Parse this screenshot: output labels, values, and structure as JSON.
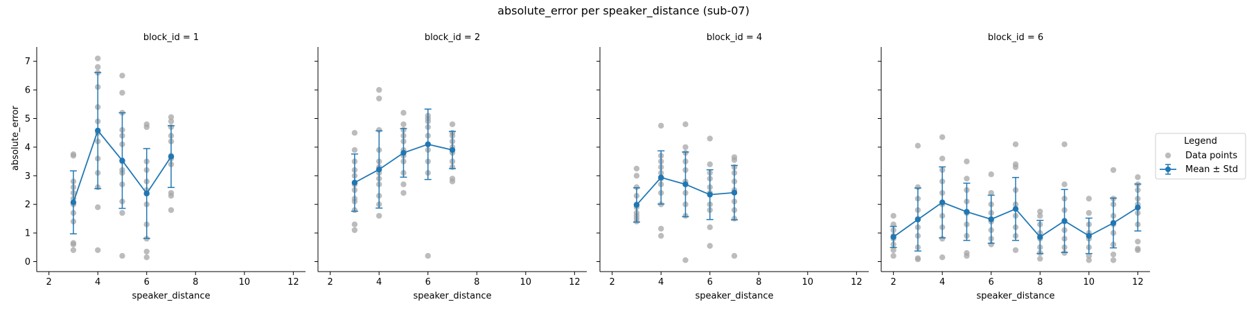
{
  "chart_data": {
    "type": "scatter",
    "title": "absolute_error per speaker_distance (sub-07)",
    "xlabel": "speaker_distance",
    "ylabel": "absolute_error",
    "xlim": [
      1.5,
      12.5
    ],
    "ylim": [
      -0.35,
      7.5
    ],
    "xticks": [
      "2",
      "4",
      "6",
      "8",
      "10",
      "12"
    ],
    "yticks": [
      "0",
      "1",
      "2",
      "3",
      "4",
      "5",
      "6",
      "7"
    ],
    "grid": false,
    "legend": {
      "title": "Legend",
      "placement": "right",
      "entries": [
        "Data points",
        "Mean ± Std"
      ]
    },
    "colors": {
      "points": "#a6a6a6",
      "mean": "#1f77b4"
    },
    "panels": [
      {
        "title": "block_id = 1",
        "points": [
          [
            3,
            0.4
          ],
          [
            3,
            0.6
          ],
          [
            3,
            0.65
          ],
          [
            3,
            1.4
          ],
          [
            3,
            1.7
          ],
          [
            3,
            2.0
          ],
          [
            3,
            2.2
          ],
          [
            3,
            2.4
          ],
          [
            3,
            2.6
          ],
          [
            3,
            2.8
          ],
          [
            3,
            3.7
          ],
          [
            3,
            3.75
          ],
          [
            4,
            0.4
          ],
          [
            4,
            1.9
          ],
          [
            4,
            2.6
          ],
          [
            4,
            3.1
          ],
          [
            4,
            3.6
          ],
          [
            4,
            4.2
          ],
          [
            4,
            4.5
          ],
          [
            4,
            4.9
          ],
          [
            4,
            5.4
          ],
          [
            4,
            6.1
          ],
          [
            4,
            6.6
          ],
          [
            4,
            6.8
          ],
          [
            4,
            7.1
          ],
          [
            5,
            0.2
          ],
          [
            5,
            1.7
          ],
          [
            5,
            2.1
          ],
          [
            5,
            2.7
          ],
          [
            5,
            3.1
          ],
          [
            5,
            3.2
          ],
          [
            5,
            3.5
          ],
          [
            5,
            4.1
          ],
          [
            5,
            4.4
          ],
          [
            5,
            4.6
          ],
          [
            5,
            5.2
          ],
          [
            5,
            5.9
          ],
          [
            5,
            6.5
          ],
          [
            6,
            0.15
          ],
          [
            6,
            0.35
          ],
          [
            6,
            0.8
          ],
          [
            6,
            1.3
          ],
          [
            6,
            2.0
          ],
          [
            6,
            2.5
          ],
          [
            6,
            2.8
          ],
          [
            6,
            3.2
          ],
          [
            6,
            3.5
          ],
          [
            6,
            4.7
          ],
          [
            6,
            4.8
          ],
          [
            7,
            1.8
          ],
          [
            7,
            2.3
          ],
          [
            7,
            2.4
          ],
          [
            7,
            3.4
          ],
          [
            7,
            3.6
          ],
          [
            7,
            3.7
          ],
          [
            7,
            4.2
          ],
          [
            7,
            4.4
          ],
          [
            7,
            4.7
          ],
          [
            7,
            4.9
          ],
          [
            7,
            5.05
          ]
        ],
        "mean": [
          [
            3,
            2.07
          ],
          [
            4,
            4.58
          ],
          [
            5,
            3.53
          ],
          [
            6,
            2.38
          ],
          [
            7,
            3.67
          ]
        ],
        "std": [
          1.1,
          2.03,
          1.67,
          1.57,
          1.08
        ]
      },
      {
        "title": "block_id = 2",
        "points": [
          [
            3,
            1.1
          ],
          [
            3,
            1.3
          ],
          [
            3,
            1.8
          ],
          [
            3,
            2.1
          ],
          [
            3,
            2.2
          ],
          [
            3,
            2.5
          ],
          [
            3,
            2.7
          ],
          [
            3,
            3.0
          ],
          [
            3,
            3.2
          ],
          [
            3,
            3.5
          ],
          [
            3,
            3.9
          ],
          [
            3,
            4.5
          ],
          [
            4,
            1.6
          ],
          [
            4,
            2.0
          ],
          [
            4,
            2.3
          ],
          [
            4,
            2.7
          ],
          [
            4,
            2.9
          ],
          [
            4,
            3.1
          ],
          [
            4,
            3.3
          ],
          [
            4,
            3.5
          ],
          [
            4,
            3.9
          ],
          [
            4,
            4.6
          ],
          [
            4,
            5.7
          ],
          [
            4,
            6.0
          ],
          [
            5,
            2.4
          ],
          [
            5,
            2.7
          ],
          [
            5,
            3.1
          ],
          [
            5,
            3.5
          ],
          [
            5,
            3.7
          ],
          [
            5,
            3.9
          ],
          [
            5,
            4.2
          ],
          [
            5,
            4.4
          ],
          [
            5,
            4.6
          ],
          [
            5,
            4.8
          ],
          [
            5,
            5.2
          ],
          [
            6,
            0.2
          ],
          [
            6,
            3.1
          ],
          [
            6,
            3.5
          ],
          [
            6,
            3.9
          ],
          [
            6,
            4.1
          ],
          [
            6,
            4.4
          ],
          [
            6,
            4.7
          ],
          [
            6,
            4.9
          ],
          [
            6,
            5.0
          ],
          [
            6,
            5.1
          ],
          [
            7,
            2.8
          ],
          [
            7,
            2.9
          ],
          [
            7,
            3.3
          ],
          [
            7,
            3.5
          ],
          [
            7,
            3.8
          ],
          [
            7,
            4.0
          ],
          [
            7,
            4.2
          ],
          [
            7,
            4.4
          ],
          [
            7,
            4.5
          ],
          [
            7,
            4.8
          ]
        ],
        "mean": [
          [
            3,
            2.76
          ],
          [
            4,
            3.22
          ],
          [
            5,
            3.8
          ],
          [
            6,
            4.1
          ],
          [
            7,
            3.9
          ]
        ],
        "std": [
          1.0,
          1.35,
          0.85,
          1.23,
          0.65
        ]
      },
      {
        "title": "block_id = 4",
        "points": [
          [
            3,
            1.4
          ],
          [
            3,
            1.5
          ],
          [
            3,
            1.6
          ],
          [
            3,
            1.7
          ],
          [
            3,
            1.9
          ],
          [
            3,
            2.0
          ],
          [
            3,
            2.3
          ],
          [
            3,
            2.6
          ],
          [
            3,
            3.0
          ],
          [
            3,
            3.25
          ],
          [
            4,
            0.9
          ],
          [
            4,
            1.15
          ],
          [
            4,
            2.0
          ],
          [
            4,
            2.4
          ],
          [
            4,
            2.7
          ],
          [
            4,
            2.9
          ],
          [
            4,
            3.1
          ],
          [
            4,
            3.3
          ],
          [
            4,
            3.5
          ],
          [
            4,
            3.7
          ],
          [
            4,
            4.75
          ],
          [
            5,
            0.05
          ],
          [
            5,
            1.6
          ],
          [
            5,
            2.0
          ],
          [
            5,
            2.4
          ],
          [
            5,
            2.8
          ],
          [
            5,
            3.2
          ],
          [
            5,
            3.5
          ],
          [
            5,
            3.8
          ],
          [
            5,
            4.0
          ],
          [
            5,
            4.8
          ],
          [
            6,
            0.55
          ],
          [
            6,
            1.2
          ],
          [
            6,
            1.8
          ],
          [
            6,
            2.0
          ],
          [
            6,
            2.4
          ],
          [
            6,
            2.6
          ],
          [
            6,
            2.9
          ],
          [
            6,
            3.1
          ],
          [
            6,
            3.4
          ],
          [
            6,
            4.3
          ],
          [
            7,
            0.2
          ],
          [
            7,
            1.5
          ],
          [
            7,
            1.8
          ],
          [
            7,
            2.1
          ],
          [
            7,
            2.5
          ],
          [
            7,
            2.8
          ],
          [
            7,
            3.1
          ],
          [
            7,
            3.3
          ],
          [
            7,
            3.55
          ],
          [
            7,
            3.65
          ]
        ],
        "mean": [
          [
            3,
            1.98
          ],
          [
            4,
            2.94
          ],
          [
            5,
            2.7
          ],
          [
            6,
            2.34
          ],
          [
            7,
            2.41
          ]
        ],
        "std": [
          0.6,
          0.93,
          1.13,
          0.87,
          0.95
        ]
      },
      {
        "title": "block_id = 6",
        "points": [
          [
            2,
            0.2
          ],
          [
            2,
            0.4
          ],
          [
            2,
            0.6
          ],
          [
            2,
            0.8
          ],
          [
            2,
            0.9
          ],
          [
            2,
            1.1
          ],
          [
            2,
            1.3
          ],
          [
            2,
            1.6
          ],
          [
            3,
            0.08
          ],
          [
            3,
            0.12
          ],
          [
            3,
            0.5
          ],
          [
            3,
            0.9
          ],
          [
            3,
            1.2
          ],
          [
            3,
            1.5
          ],
          [
            3,
            1.8
          ],
          [
            3,
            2.2
          ],
          [
            3,
            2.6
          ],
          [
            3,
            4.05
          ],
          [
            4,
            0.15
          ],
          [
            4,
            0.8
          ],
          [
            4,
            1.2
          ],
          [
            4,
            1.6
          ],
          [
            4,
            2.0
          ],
          [
            4,
            2.4
          ],
          [
            4,
            2.8
          ],
          [
            4,
            3.2
          ],
          [
            4,
            3.6
          ],
          [
            4,
            4.35
          ],
          [
            5,
            0.2
          ],
          [
            5,
            0.3
          ],
          [
            5,
            0.9
          ],
          [
            5,
            1.3
          ],
          [
            5,
            1.7
          ],
          [
            5,
            2.1
          ],
          [
            5,
            2.5
          ],
          [
            5,
            2.9
          ],
          [
            5,
            3.5
          ],
          [
            6,
            0.6
          ],
          [
            6,
            0.8
          ],
          [
            6,
            1.1
          ],
          [
            6,
            1.4
          ],
          [
            6,
            1.7
          ],
          [
            6,
            2.0
          ],
          [
            6,
            2.4
          ],
          [
            6,
            3.05
          ],
          [
            7,
            0.4
          ],
          [
            7,
            0.9
          ],
          [
            7,
            1.2
          ],
          [
            7,
            1.6
          ],
          [
            7,
            2.0
          ],
          [
            7,
            2.5
          ],
          [
            7,
            3.3
          ],
          [
            7,
            3.4
          ],
          [
            7,
            4.1
          ],
          [
            8,
            0.1
          ],
          [
            8,
            0.3
          ],
          [
            8,
            0.5
          ],
          [
            8,
            0.8
          ],
          [
            8,
            1.0
          ],
          [
            8,
            1.3
          ],
          [
            8,
            1.6
          ],
          [
            8,
            1.75
          ],
          [
            9,
            0.3
          ],
          [
            9,
            0.5
          ],
          [
            9,
            0.8
          ],
          [
            9,
            1.1
          ],
          [
            9,
            1.4
          ],
          [
            9,
            1.8
          ],
          [
            9,
            2.2
          ],
          [
            9,
            2.7
          ],
          [
            9,
            4.1
          ],
          [
            10,
            0.05
          ],
          [
            10,
            0.2
          ],
          [
            10,
            0.5
          ],
          [
            10,
            0.8
          ],
          [
            10,
            1.0
          ],
          [
            10,
            1.3
          ],
          [
            10,
            1.7
          ],
          [
            10,
            2.2
          ],
          [
            11,
            0.05
          ],
          [
            11,
            0.25
          ],
          [
            11,
            0.6
          ],
          [
            11,
            1.0
          ],
          [
            11,
            1.3
          ],
          [
            11,
            1.6
          ],
          [
            11,
            2.0
          ],
          [
            11,
            2.2
          ],
          [
            11,
            3.2
          ],
          [
            12,
            0.4
          ],
          [
            12,
            0.45
          ],
          [
            12,
            0.7
          ],
          [
            12,
            1.3
          ],
          [
            12,
            1.7
          ],
          [
            12,
            2.0
          ],
          [
            12,
            2.2
          ],
          [
            12,
            2.5
          ],
          [
            12,
            2.7
          ],
          [
            12,
            2.95
          ]
        ],
        "mean": [
          [
            2,
            0.86
          ],
          [
            3,
            1.47
          ],
          [
            4,
            2.07
          ],
          [
            5,
            1.74
          ],
          [
            6,
            1.48
          ],
          [
            7,
            1.84
          ],
          [
            8,
            0.86
          ],
          [
            9,
            1.42
          ],
          [
            10,
            0.9
          ],
          [
            11,
            1.35
          ],
          [
            12,
            1.89
          ]
        ],
        "std": [
          0.37,
          1.1,
          1.24,
          1.0,
          0.84,
          1.1,
          0.58,
          1.1,
          0.62,
          0.87,
          0.82
        ]
      }
    ]
  }
}
